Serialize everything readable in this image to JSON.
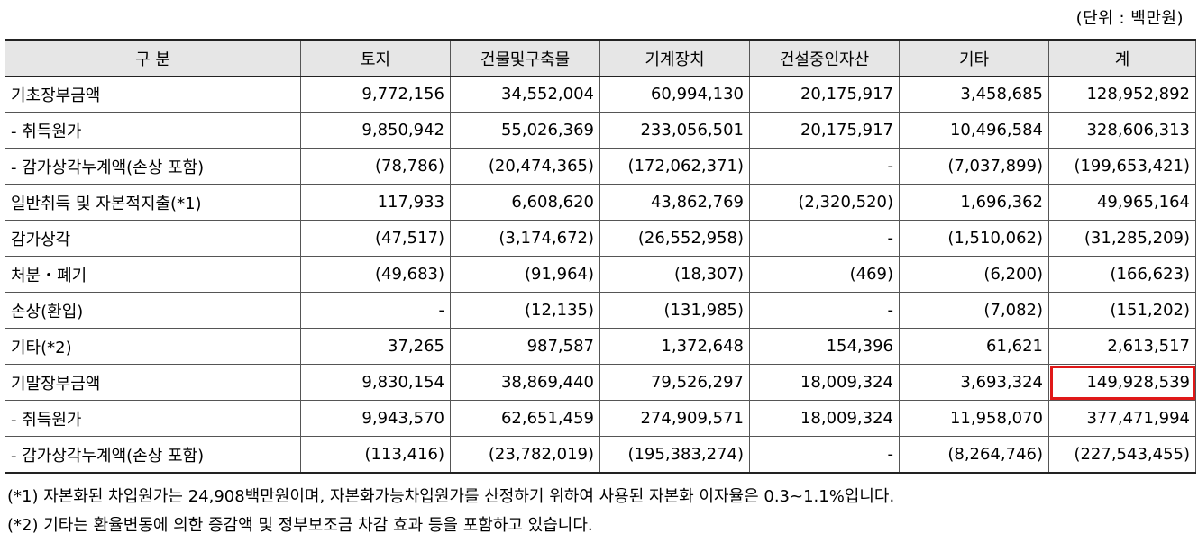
{
  "unit_label": "(단위 : 백만원)",
  "columns": [
    "구   분",
    "토지",
    "건물및구축물",
    "기계장치",
    "건설중인자산",
    "기타",
    "계"
  ],
  "rows": [
    {
      "label": "기초장부금액",
      "values": [
        "9,772,156",
        "34,552,004",
        "60,994,130",
        "20,175,917",
        "3,458,685",
        "128,952,892"
      ],
      "group_start": true
    },
    {
      "label": " - 취득원가",
      "values": [
        "9,850,942",
        "55,026,369",
        "233,056,501",
        "20,175,917",
        "10,496,584",
        "328,606,313"
      ]
    },
    {
      "label": " - 감가상각누계액(손상 포함)",
      "values": [
        "(78,786)",
        "(20,474,365)",
        "(172,062,371)",
        "-",
        "(7,037,899)",
        "(199,653,421)"
      ]
    },
    {
      "label": "일반취득 및 자본적지출(*1)",
      "values": [
        "117,933",
        "6,608,620",
        "43,862,769",
        "(2,320,520)",
        "1,696,362",
        "49,965,164"
      ],
      "group_start": true
    },
    {
      "label": "감가상각",
      "values": [
        "(47,517)",
        "(3,174,672)",
        "(26,552,958)",
        "-",
        "(1,510,062)",
        "(31,285,209)"
      ]
    },
    {
      "label": "처분・폐기",
      "values": [
        "(49,683)",
        "(91,964)",
        "(18,307)",
        "(469)",
        "(6,200)",
        "(166,623)"
      ]
    },
    {
      "label": "손상(환입)",
      "values": [
        "-",
        "(12,135)",
        "(131,985)",
        "-",
        "(7,082)",
        "(151,202)"
      ]
    },
    {
      "label": "기타(*2)",
      "values": [
        "37,265",
        "987,587",
        "1,372,648",
        "154,396",
        "61,621",
        "2,613,517"
      ]
    },
    {
      "label": "기말장부금액",
      "values": [
        "9,830,154",
        "38,869,440",
        "79,526,297",
        "18,009,324",
        "3,693,324",
        "149,928,539"
      ],
      "group_start": true,
      "highlight_col": 5
    },
    {
      "label": " - 취득원가",
      "values": [
        "9,943,570",
        "62,651,459",
        "274,909,571",
        "18,009,324",
        "11,958,070",
        "377,471,994"
      ]
    },
    {
      "label": " - 감가상각누계액(손상 포함)",
      "values": [
        "(113,416)",
        "(23,782,019)",
        "(195,383,274)",
        "-",
        "(8,264,746)",
        "(227,543,455)"
      ]
    }
  ],
  "notes": [
    "(*1) 자본화된 차입원가는 24,908백만원이며, 자본화가능차입원가를 산정하기 위하여 사용된 자본화 이자율은 0.3~1.1%입니다.",
    "(*2) 기타는 환율변동에 의한 증감액 및 정부보조금 차감 효과 등을 포함하고 있습니다."
  ],
  "colors": {
    "highlight": "#e01818",
    "header_bg": "#e6e6e6"
  }
}
